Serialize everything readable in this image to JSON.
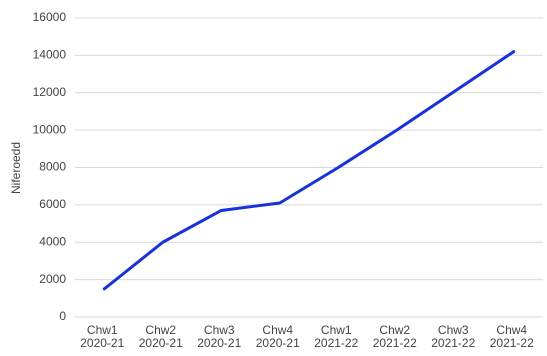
{
  "chart_data": {
    "type": "line",
    "ylabel": "Niferoedd",
    "categories": [
      [
        "Chw1",
        "2020-21"
      ],
      [
        "Chw2",
        "2020-21"
      ],
      [
        "Chw3",
        "2020-21"
      ],
      [
        "Chw4",
        "2020-21"
      ],
      [
        "Chw1",
        "2021-22"
      ],
      [
        "Chw2",
        "2021-22"
      ],
      [
        "Chw3",
        "2021-22"
      ],
      [
        "Chw4",
        "2021-22"
      ]
    ],
    "values": [
      1500,
      4000,
      5700,
      6100,
      8000,
      10000,
      12100,
      14200
    ],
    "color": "#1631e0",
    "ylim": [
      0,
      16000
    ],
    "yticks": [
      0,
      2000,
      4000,
      6000,
      8000,
      10000,
      12000,
      14000,
      16000
    ],
    "grid": true
  }
}
